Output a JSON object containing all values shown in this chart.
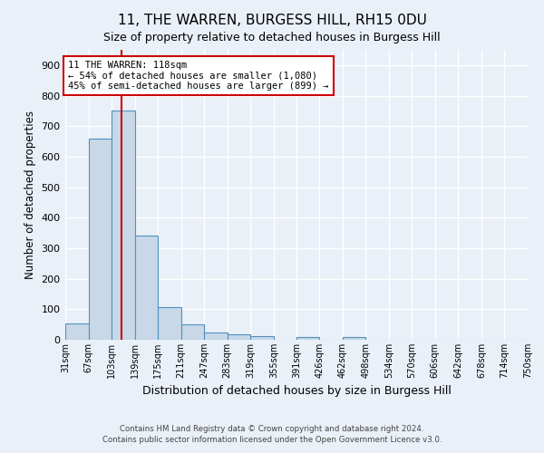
{
  "title_line1": "11, THE WARREN, BURGESS HILL, RH15 0DU",
  "title_line2": "Size of property relative to detached houses in Burgess Hill",
  "xlabel": "Distribution of detached houses by size in Burgess Hill",
  "ylabel": "Number of detached properties",
  "footer_line1": "Contains HM Land Registry data © Crown copyright and database right 2024.",
  "footer_line2": "Contains public sector information licensed under the Open Government Licence v3.0.",
  "bar_edges": [
    31,
    67,
    103,
    139,
    175,
    211,
    247,
    283,
    319,
    355,
    391,
    426,
    462,
    498,
    534,
    570,
    606,
    642,
    678,
    714,
    750
  ],
  "bar_heights": [
    52,
    660,
    750,
    340,
    108,
    50,
    25,
    17,
    13,
    0,
    8,
    0,
    8,
    0,
    0,
    0,
    0,
    0,
    0,
    0
  ],
  "bar_color": "#c8d8e8",
  "bar_edge_color": "#5090c0",
  "red_line_x": 118,
  "annotation_text_line1": "11 THE WARREN: 118sqm",
  "annotation_text_line2": "← 54% of detached houses are smaller (1,080)",
  "annotation_text_line3": "45% of semi-detached houses are larger (899) →",
  "ylim": [
    0,
    950
  ],
  "yticks": [
    0,
    100,
    200,
    300,
    400,
    500,
    600,
    700,
    800,
    900
  ],
  "background_color": "#eaf0f8",
  "grid_color": "#ffffff",
  "annotation_red_color": "#cc0000",
  "tick_labels": [
    "31sqm",
    "67sqm",
    "103sqm",
    "139sqm",
    "175sqm",
    "211sqm",
    "247sqm",
    "283sqm",
    "319sqm",
    "355sqm",
    "391sqm",
    "426sqm",
    "462sqm",
    "498sqm",
    "534sqm",
    "570sqm",
    "606sqm",
    "642sqm",
    "678sqm",
    "714sqm",
    "750sqm"
  ]
}
